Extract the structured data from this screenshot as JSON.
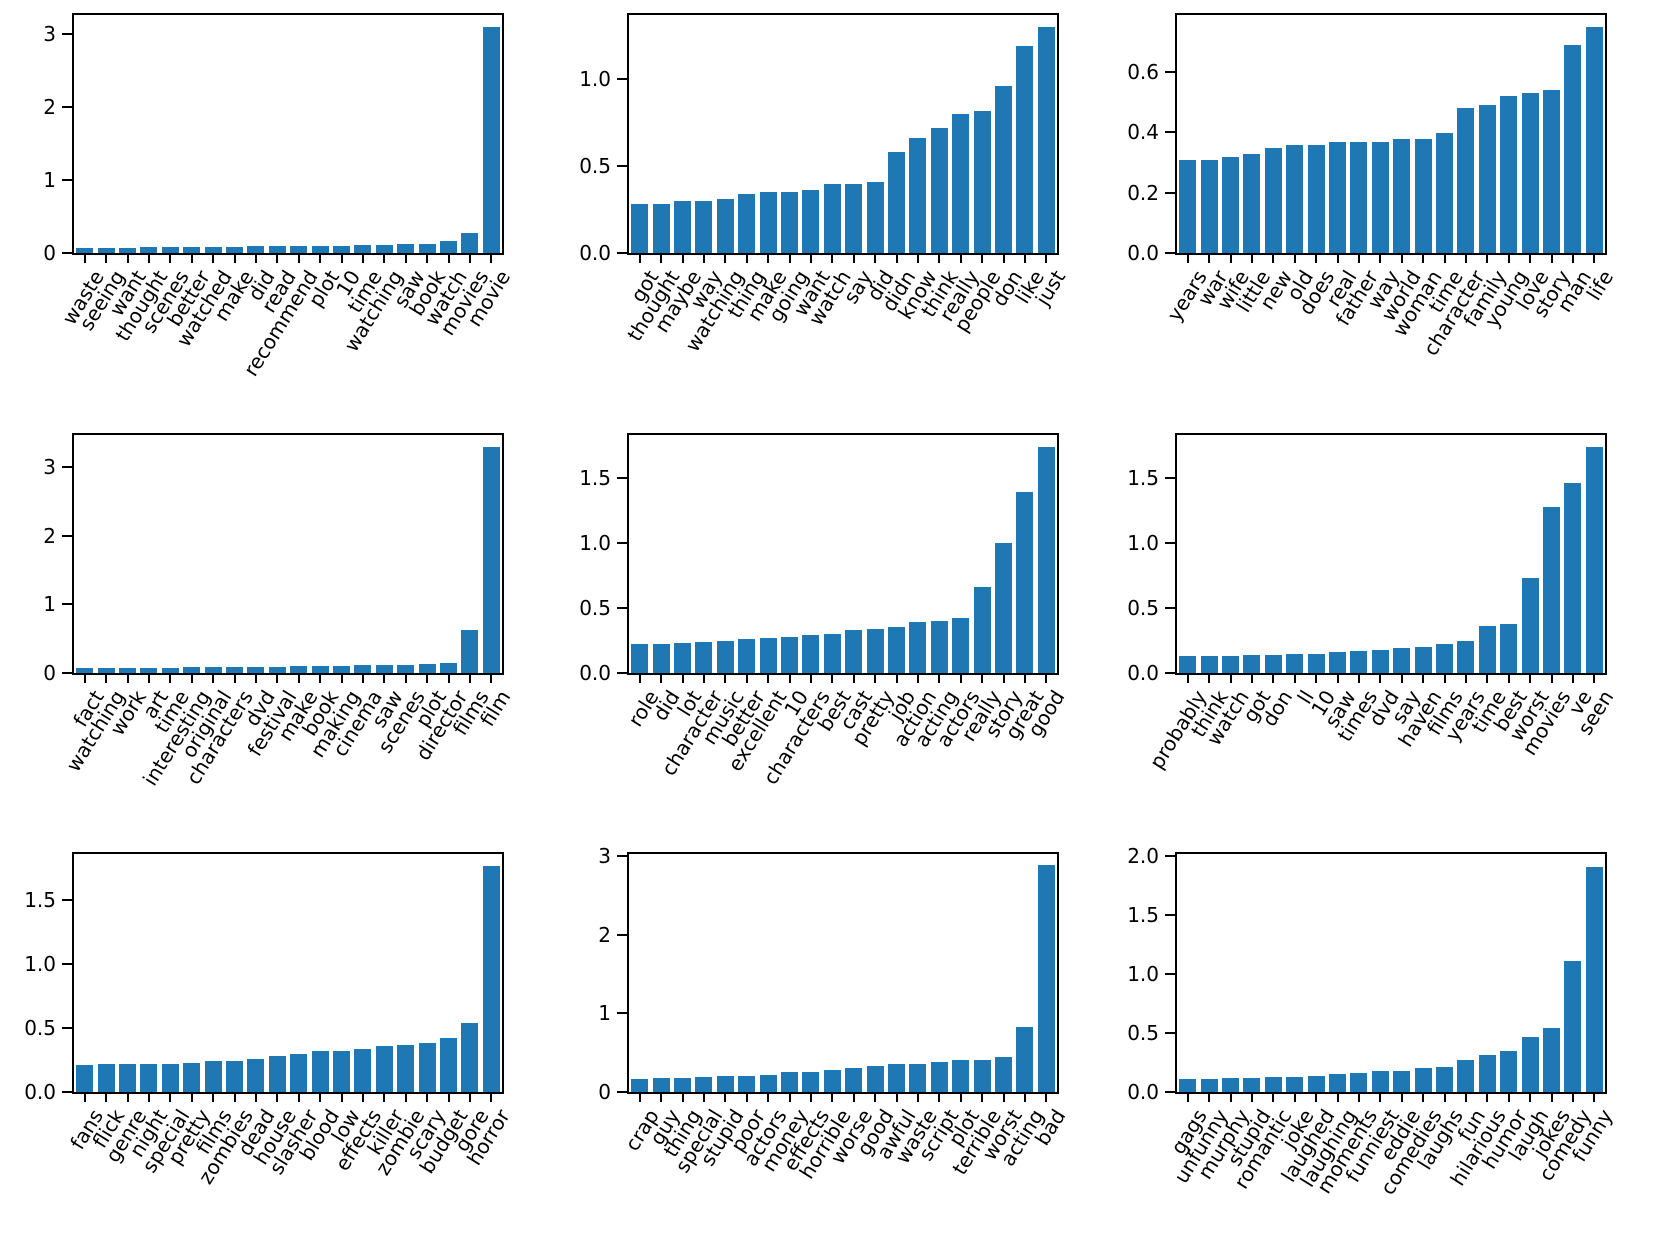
{
  "figure": {
    "background": "#ffffff",
    "bar_color": "#1f77b4",
    "axis_color": "#000000",
    "grid_rows": 3,
    "grid_cols": 3
  },
  "chart_data": [
    {
      "type": "bar",
      "row": 0,
      "col": 0,
      "title": "",
      "xlabel": "",
      "ylabel": "",
      "grid": false,
      "legend": null,
      "categories": [
        "waste",
        "seeing",
        "want",
        "thought",
        "scenes",
        "better",
        "watched",
        "make",
        "did",
        "read",
        "recommend",
        "plot",
        "10",
        "time",
        "watching",
        "saw",
        "book",
        "watch",
        "movies",
        "movie"
      ],
      "values": [
        0.07,
        0.07,
        0.07,
        0.08,
        0.08,
        0.08,
        0.08,
        0.08,
        0.09,
        0.09,
        0.09,
        0.1,
        0.1,
        0.11,
        0.11,
        0.13,
        0.13,
        0.17,
        0.27,
        3.1
      ],
      "ylim": [
        0,
        3.26
      ],
      "yticks": [
        0,
        1,
        2,
        3
      ],
      "ytick_labels": [
        "0",
        "1",
        "2",
        "3"
      ]
    },
    {
      "type": "bar",
      "row": 0,
      "col": 1,
      "title": "",
      "xlabel": "",
      "ylabel": "",
      "grid": false,
      "legend": null,
      "categories": [
        "got",
        "thought",
        "maybe",
        "way",
        "watching",
        "thing",
        "make",
        "going",
        "want",
        "watch",
        "say",
        "did",
        "didn",
        "know",
        "think",
        "really",
        "people",
        "don",
        "like",
        "just"
      ],
      "values": [
        0.28,
        0.28,
        0.3,
        0.3,
        0.31,
        0.34,
        0.35,
        0.35,
        0.36,
        0.4,
        0.4,
        0.41,
        0.58,
        0.66,
        0.72,
        0.8,
        0.82,
        0.96,
        1.19,
        1.3
      ],
      "ylim": [
        0,
        1.37
      ],
      "yticks": [
        0,
        0.5,
        1.0
      ],
      "ytick_labels": [
        "0.0",
        "0.5",
        "1.0"
      ]
    },
    {
      "type": "bar",
      "row": 0,
      "col": 2,
      "title": "",
      "xlabel": "",
      "ylabel": "",
      "grid": false,
      "legend": null,
      "categories": [
        "years",
        "war",
        "wife",
        "little",
        "new",
        "old",
        "does",
        "real",
        "father",
        "way",
        "world",
        "woman",
        "time",
        "character",
        "family",
        "young",
        "love",
        "story",
        "man",
        "life"
      ],
      "values": [
        0.31,
        0.31,
        0.32,
        0.33,
        0.35,
        0.36,
        0.36,
        0.37,
        0.37,
        0.37,
        0.38,
        0.38,
        0.4,
        0.48,
        0.49,
        0.52,
        0.53,
        0.54,
        0.69,
        0.75
      ],
      "ylim": [
        0,
        0.79
      ],
      "yticks": [
        0,
        0.2,
        0.4,
        0.6
      ],
      "ytick_labels": [
        "0.0",
        "0.2",
        "0.4",
        "0.6"
      ]
    },
    {
      "type": "bar",
      "row": 1,
      "col": 0,
      "title": "",
      "xlabel": "",
      "ylabel": "",
      "grid": false,
      "legend": null,
      "categories": [
        "fact",
        "watching",
        "work",
        "art",
        "time",
        "interesting",
        "original",
        "characters",
        "dvd",
        "festival",
        "make",
        "book",
        "making",
        "cinema",
        "saw",
        "scenes",
        "plot",
        "director",
        "films",
        "film"
      ],
      "values": [
        0.08,
        0.08,
        0.08,
        0.08,
        0.08,
        0.09,
        0.09,
        0.09,
        0.09,
        0.09,
        0.1,
        0.1,
        0.1,
        0.12,
        0.12,
        0.12,
        0.13,
        0.15,
        0.62,
        3.3
      ],
      "ylim": [
        0,
        3.47
      ],
      "yticks": [
        0,
        1,
        2,
        3
      ],
      "ytick_labels": [
        "0",
        "1",
        "2",
        "3"
      ]
    },
    {
      "type": "bar",
      "row": 1,
      "col": 1,
      "title": "",
      "xlabel": "",
      "ylabel": "",
      "grid": false,
      "legend": null,
      "categories": [
        "role",
        "did",
        "lot",
        "character",
        "music",
        "better",
        "excellent",
        "10",
        "characters",
        "best",
        "cast",
        "pretty",
        "job",
        "action",
        "acting",
        "actors",
        "really",
        "story",
        "great",
        "good"
      ],
      "values": [
        0.22,
        0.22,
        0.23,
        0.24,
        0.25,
        0.26,
        0.27,
        0.28,
        0.29,
        0.3,
        0.33,
        0.34,
        0.35,
        0.39,
        0.4,
        0.42,
        0.66,
        1.0,
        1.39,
        1.74
      ],
      "ylim": [
        0,
        1.83
      ],
      "yticks": [
        0,
        0.5,
        1.0,
        1.5
      ],
      "ytick_labels": [
        "0.0",
        "0.5",
        "1.0",
        "1.5"
      ]
    },
    {
      "type": "bar",
      "row": 1,
      "col": 2,
      "title": "",
      "xlabel": "",
      "ylabel": "",
      "grid": false,
      "legend": null,
      "categories": [
        "probably",
        "think",
        "watch",
        "got",
        "don",
        "ll",
        "10",
        "saw",
        "times",
        "dvd",
        "say",
        "haven",
        "films",
        "years",
        "time",
        "best",
        "worst",
        "movies",
        "ve",
        "seen"
      ],
      "values": [
        0.13,
        0.13,
        0.13,
        0.14,
        0.14,
        0.15,
        0.15,
        0.16,
        0.17,
        0.18,
        0.19,
        0.2,
        0.22,
        0.25,
        0.36,
        0.38,
        0.73,
        1.28,
        1.46,
        1.74
      ],
      "ylim": [
        0,
        1.83
      ],
      "yticks": [
        0,
        0.5,
        1.0,
        1.5
      ],
      "ytick_labels": [
        "0.0",
        "0.5",
        "1.0",
        "1.5"
      ]
    },
    {
      "type": "bar",
      "row": 2,
      "col": 0,
      "title": "",
      "xlabel": "",
      "ylabel": "",
      "grid": false,
      "legend": null,
      "categories": [
        "fans",
        "flick",
        "genre",
        "night",
        "special",
        "pretty",
        "films",
        "zombies",
        "dead",
        "house",
        "slasher",
        "blood",
        "low",
        "effects",
        "killer",
        "zombie",
        "scary",
        "budget",
        "gore",
        "horror"
      ],
      "values": [
        0.21,
        0.22,
        0.22,
        0.22,
        0.22,
        0.23,
        0.24,
        0.24,
        0.26,
        0.28,
        0.3,
        0.32,
        0.32,
        0.34,
        0.36,
        0.37,
        0.38,
        0.42,
        0.54,
        1.77
      ],
      "ylim": [
        0,
        1.86
      ],
      "yticks": [
        0,
        0.5,
        1.0,
        1.5
      ],
      "ytick_labels": [
        "0.0",
        "0.5",
        "1.0",
        "1.5"
      ]
    },
    {
      "type": "bar",
      "row": 2,
      "col": 1,
      "title": "",
      "xlabel": "",
      "ylabel": "",
      "grid": false,
      "legend": null,
      "categories": [
        "crap",
        "guy",
        "thing",
        "special",
        "stupid",
        "poor",
        "actors",
        "money",
        "effects",
        "horrible",
        "worse",
        "good",
        "awful",
        "waste",
        "script",
        "plot",
        "terrible",
        "worst",
        "acting",
        "bad"
      ],
      "values": [
        0.17,
        0.18,
        0.18,
        0.19,
        0.21,
        0.21,
        0.22,
        0.25,
        0.26,
        0.28,
        0.3,
        0.33,
        0.36,
        0.36,
        0.38,
        0.41,
        0.41,
        0.44,
        0.83,
        2.89
      ],
      "ylim": [
        0,
        3.03
      ],
      "yticks": [
        0,
        1,
        2,
        3
      ],
      "ytick_labels": [
        "0",
        "1",
        "2",
        "3"
      ]
    },
    {
      "type": "bar",
      "row": 2,
      "col": 2,
      "title": "",
      "xlabel": "",
      "ylabel": "",
      "grid": false,
      "legend": null,
      "categories": [
        "gags",
        "unfunny",
        "murphy",
        "stupid",
        "romantic",
        "joke",
        "laughed",
        "laughing",
        "moments",
        "funniest",
        "eddie",
        "comedies",
        "laughs",
        "fun",
        "hilarious",
        "humor",
        "laugh",
        "jokes",
        "comedy",
        "funny"
      ],
      "values": [
        0.11,
        0.11,
        0.12,
        0.12,
        0.13,
        0.13,
        0.14,
        0.15,
        0.16,
        0.18,
        0.18,
        0.2,
        0.21,
        0.27,
        0.31,
        0.35,
        0.47,
        0.54,
        1.11,
        1.91
      ],
      "ylim": [
        0,
        2.02
      ],
      "yticks": [
        0,
        0.5,
        1.0,
        1.5,
        2.0
      ],
      "ytick_labels": [
        "0.0",
        "0.5",
        "1.0",
        "1.5",
        "2.0"
      ]
    }
  ]
}
